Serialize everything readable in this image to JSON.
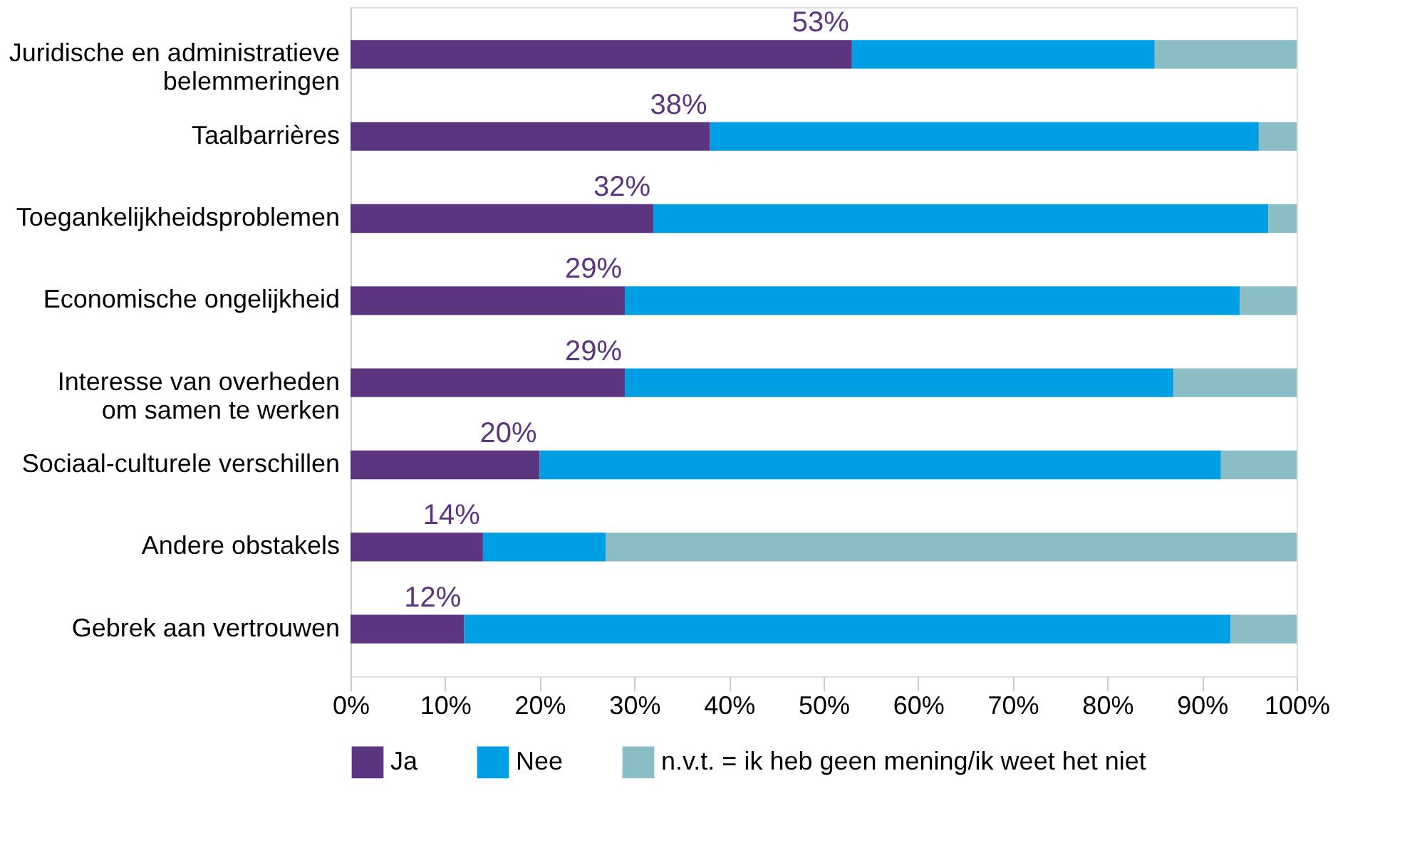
{
  "chart_data": {
    "type": "bar",
    "orientation": "horizontal",
    "stacked": true,
    "categories": [
      "Juridische en administratieve\nbelemmeringen",
      "Taalbarrières",
      "Toegankelijkheidsproblemen",
      "Economische ongelijkheid",
      "Interesse van overheden\nom samen te werken",
      "Sociaal-culturele verschillen",
      "Andere obstakels",
      "Gebrek aan vertrouwen"
    ],
    "series": [
      {
        "name": "Ja",
        "color": "#5c3580",
        "values": [
          53,
          38,
          32,
          29,
          29,
          20,
          14,
          12
        ],
        "value_labels": [
          "53%",
          "38%",
          "32%",
          "29%",
          "29%",
          "20%",
          "14%",
          "12%"
        ]
      },
      {
        "name": "Nee",
        "color": "#009fe3",
        "values": [
          32,
          58,
          65,
          65,
          58,
          72,
          13,
          81
        ]
      },
      {
        "name": "n.v.t. = ik heb geen mening/ik weet het niet",
        "color": "#8bbec4",
        "values": [
          15,
          4,
          3,
          6,
          13,
          8,
          73,
          7
        ]
      }
    ],
    "xlim": [
      0,
      100
    ],
    "xticks": [
      {
        "value": 0,
        "label": "0%"
      },
      {
        "value": 10,
        "label": "10%"
      },
      {
        "value": 20,
        "label": "20%"
      },
      {
        "value": 30,
        "label": "30%"
      },
      {
        "value": 40,
        "label": "40%"
      },
      {
        "value": 50,
        "label": "50%"
      },
      {
        "value": 60,
        "label": "60%"
      },
      {
        "value": 70,
        "label": "70%"
      },
      {
        "value": 80,
        "label": "80%"
      },
      {
        "value": 90,
        "label": "90%"
      },
      {
        "value": 100,
        "label": "100%"
      }
    ],
    "grid": false,
    "legend": "bottom"
  }
}
